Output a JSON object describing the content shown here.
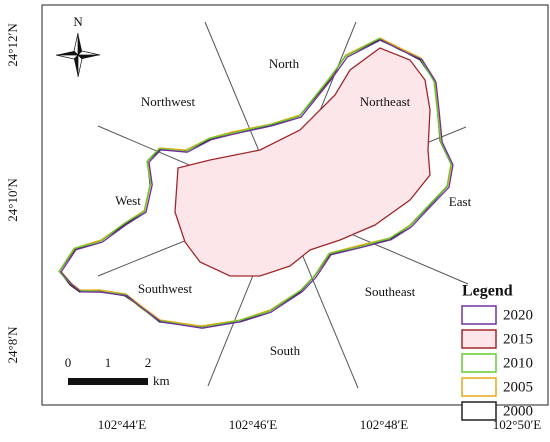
{
  "north": "N",
  "sectors": [
    "North",
    "Northeast",
    "East",
    "Southeast",
    "South",
    "Southwest",
    "West",
    "Northwest"
  ],
  "lat_labels": [
    "24°12′N",
    "24°10′N",
    "24°8′N"
  ],
  "lon_labels": [
    "102°44′E",
    "102°46′E",
    "102°48′E",
    "102°50′E"
  ],
  "scale": {
    "ticks": [
      "0",
      "1",
      "2"
    ],
    "unit": "km"
  },
  "legend": {
    "title": "Legend",
    "items": [
      {
        "label": "2020",
        "color": "#7030a0"
      },
      {
        "label": "2015",
        "color": "#a0282a"
      },
      {
        "label": "2010",
        "color": "#66cc33"
      },
      {
        "label": "2005",
        "color": "#e6a817"
      },
      {
        "label": "2000",
        "color": "#222222"
      }
    ]
  }
}
